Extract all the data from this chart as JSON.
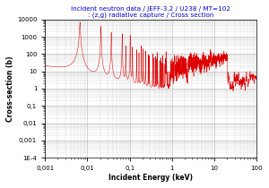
{
  "title_line1": "Incident neutron data / JEFF-3.2 / U238 / MT=102",
  "title_line2": ": (z,g) radiative capture / Cross section",
  "xlabel": "Incident Energy (keV)",
  "ylabel": "Cross-section (b)",
  "title_color": "#0000cc",
  "line_color": "#dd0000",
  "line_color_light": "#ee8888",
  "background_color": "#ffffff",
  "grid_color": "#bbbbbb",
  "xmin": 0.001,
  "xmax": 100,
  "ymin": 0.0001,
  "ymax": 10000,
  "yticks": [
    0.0001,
    0.001,
    0.01,
    0.1,
    1,
    10,
    100,
    1000,
    10000
  ],
  "ytick_labels": [
    "1E-4",
    "0,001",
    "0,01",
    "0,1",
    "1",
    "10",
    "100",
    "1000",
    "10000"
  ],
  "xticks": [
    0.001,
    0.01,
    0.1,
    1,
    10,
    100
  ],
  "xtick_labels": [
    "0,001",
    "0,01",
    "0,1",
    "1",
    "10",
    "100"
  ]
}
